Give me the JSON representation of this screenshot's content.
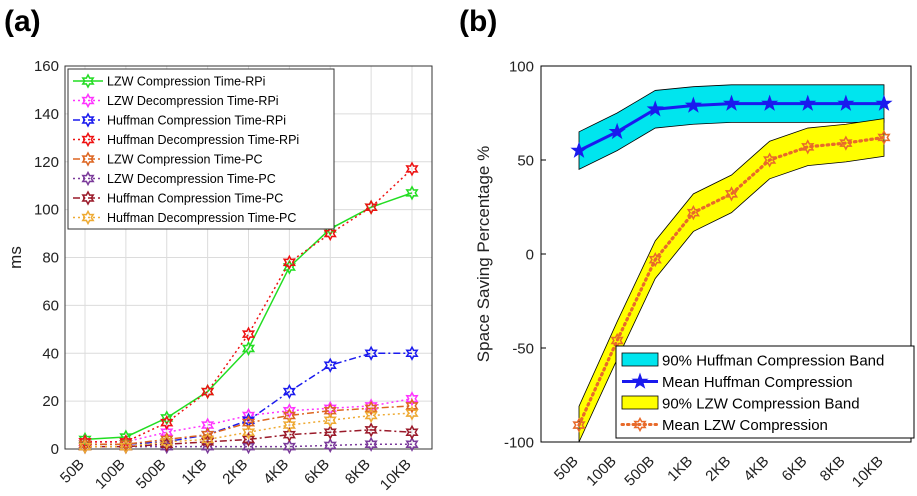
{
  "chart_data": [
    {
      "panel_label": "(a)",
      "type": "line",
      "categories": [
        "50B",
        "100B",
        "500B",
        "1KB",
        "2KB",
        "4KB",
        "6KB",
        "8KB",
        "10KB"
      ],
      "ylabel": "ms",
      "xlabel": "",
      "ylim": [
        0,
        160
      ],
      "yticks": [
        0,
        20,
        40,
        60,
        80,
        100,
        120,
        140,
        160
      ],
      "grid": true,
      "legend_position": "top-left",
      "series": [
        {
          "name": "LZW Compression Time-RPi",
          "color": "#22dd22",
          "dash": "solid",
          "marker": "star6",
          "values": [
            4,
            5,
            13,
            24,
            42,
            76,
            92,
            101,
            107
          ]
        },
        {
          "name": "LZW Decompression Time-RPi",
          "color": "#ff33ff",
          "dash": "dot",
          "marker": "star6",
          "values": [
            3,
            3,
            7,
            10,
            14,
            16,
            17,
            18,
            21
          ]
        },
        {
          "name": "Huffman Compression Time-RPi",
          "color": "#1a1aee",
          "dash": "dashdot",
          "marker": "star6",
          "values": [
            2,
            2,
            3,
            6,
            12,
            24,
            35,
            40,
            40
          ]
        },
        {
          "name": "Huffman Decompression Time-RPi",
          "color": "#ee1111",
          "dash": "dot",
          "marker": "star6",
          "values": [
            3,
            3,
            11,
            24,
            48,
            78,
            90,
            101,
            117
          ]
        },
        {
          "name": "LZW Compression Time-PC",
          "color": "#dd6622",
          "dash": "dashdot",
          "marker": "star6",
          "values": [
            2,
            2,
            4,
            6,
            11,
            14,
            16,
            17,
            18
          ]
        },
        {
          "name": "LZW Decompression Time-PC",
          "color": "#7a3a9a",
          "dash": "dot",
          "marker": "star6",
          "values": [
            1,
            1,
            1,
            1,
            1,
            1,
            1.5,
            2,
            2
          ]
        },
        {
          "name": "Huffman Compression Time-PC",
          "color": "#9a1a2a",
          "dash": "dashdot",
          "marker": "star6",
          "values": [
            1,
            1,
            2,
            3,
            4,
            6,
            7,
            8,
            7
          ]
        },
        {
          "name": "Huffman Decompression Time-PC",
          "color": "#eeaa33",
          "dash": "dot",
          "marker": "star6",
          "values": [
            1,
            1,
            3,
            4,
            7,
            10,
            12,
            14,
            15
          ]
        }
      ]
    },
    {
      "panel_label": "(b)",
      "type": "line",
      "categories": [
        "50B",
        "100B",
        "500B",
        "1KB",
        "2KB",
        "4KB",
        "6KB",
        "8KB",
        "10KB"
      ],
      "ylabel": "Space Saving Percentage %",
      "xlabel": "",
      "ylim": [
        -100,
        100
      ],
      "yticks": [
        -100,
        -50,
        0,
        50,
        100
      ],
      "grid": false,
      "legend_position": "bottom-right",
      "bands": [
        {
          "name": "90% Huffman Compression Band",
          "color": "#00e5ee",
          "upper": [
            65,
            75,
            87,
            89,
            90,
            90,
            90,
            90,
            90
          ],
          "lower": [
            45,
            55,
            67,
            69,
            70,
            70,
            70,
            70,
            70
          ]
        },
        {
          "name": "90% LZW Compression Band",
          "color": "#ffff00",
          "upper": [
            -81,
            -36,
            7,
            32,
            42,
            60,
            67,
            69,
            72
          ],
          "lower": [
            -101,
            -56,
            -13,
            12,
            22,
            40,
            47,
            49,
            52
          ]
        }
      ],
      "series": [
        {
          "name": "Mean Huffman Compression",
          "color": "#1a1aee",
          "dash": "solid",
          "marker": "star",
          "values": [
            55,
            65,
            77,
            79,
            80,
            80,
            80,
            80,
            80
          ]
        },
        {
          "name": "Mean LZW Compression",
          "color": "#e86a2a",
          "dash": "dot",
          "marker": "star6",
          "values": [
            -91,
            -46,
            -3,
            22,
            32,
            50,
            57,
            59,
            62
          ]
        }
      ],
      "legend_order": [
        "90% Huffman Compression Band",
        "Mean Huffman Compression",
        "90% LZW Compression Band",
        "Mean LZW Compression"
      ]
    }
  ]
}
